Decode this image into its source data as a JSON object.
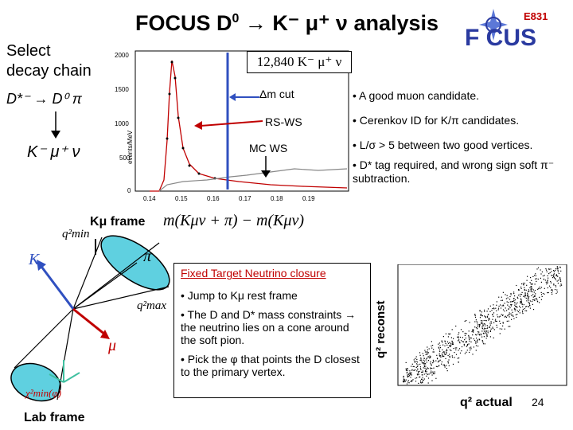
{
  "slide": {
    "title_main": "FOCUS D",
    "title_sup": "0",
    "title_rest": " → K⁻ μ⁺ ν analysis",
    "logo_text_e831": "E831",
    "logo_text_focus": "F   CUS",
    "side_select": "Select",
    "side_decay": "decay chain",
    "side_decay_top": "D*⁻ → D⁰ π",
    "side_decay_bottom": "K⁻ μ⁺ ν",
    "inset_count": "12,840 K⁻ μ⁺ ν",
    "label_dm_cut": "Δm cut",
    "label_rs_ws": "RS-WS",
    "label_mc_ws": "MC WS",
    "plot_ylabel": "events/MeV",
    "plot_y_ticks": [
      "2000",
      "1500",
      "1000",
      "500",
      "0"
    ],
    "plot_x_ticks": [
      "0.14",
      "0.15",
      "0.16",
      "0.17",
      "0.18",
      "0.19"
    ],
    "bullets": [
      "• A good muon candidate.",
      "• Cerenkov ID for K/π candidates.",
      "•  L/σ > 5 between two good vertices.",
      "• D* tag required, and wrong sign soft π⁻ subtraction."
    ],
    "frame_label": "Kμ frame",
    "dm_formula": "m(Kμν + π) − m(Kμν)",
    "closure_header": "Fixed Target Neutrino closure",
    "closure_items": [
      "• Jump  to Kμ rest frame",
      "• The D and D* mass constraints → the  neutrino lies on a cone around the soft pion.",
      "• Pick the φ that points the D closest to the primary vertex."
    ],
    "scatter_ylabel": "q² reconst",
    "scatter_xlabel": "q² actual",
    "page_number": "24",
    "lab_frame": "Lab frame",
    "diag_q2min": "q²min",
    "diag_q2max": "q²max",
    "diag_K": "K",
    "diag_mu": "μ",
    "diag_pi": "π",
    "diag_chi": "χ²min(φ)",
    "colors": {
      "accent_blue": "#3050c0",
      "red": "#c00000",
      "cyan": "#40c8d8",
      "logo_blue": "#2a3aa0"
    }
  }
}
